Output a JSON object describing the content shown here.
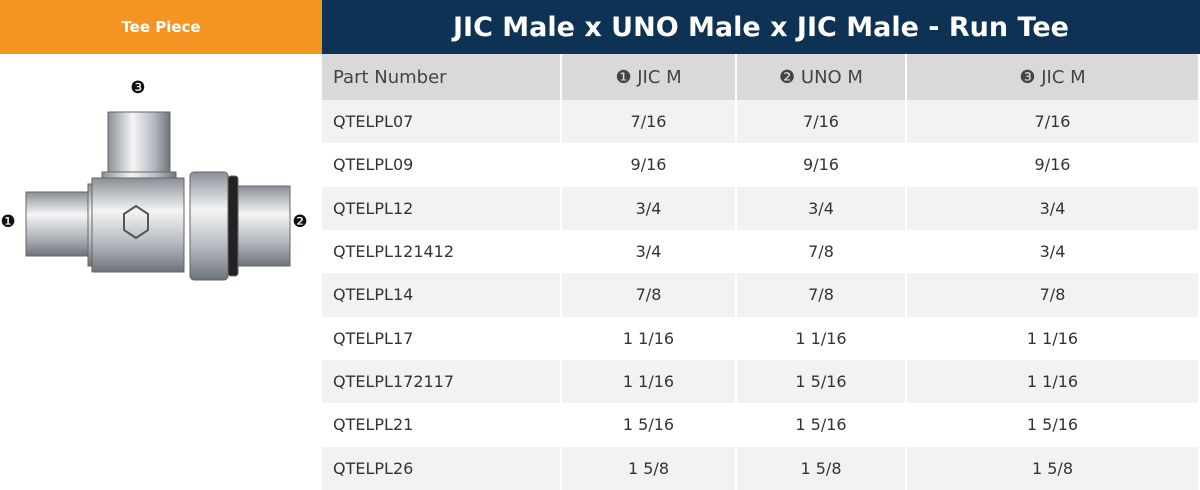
{
  "header": {
    "tab": "Tee Piece",
    "title": "JIC Male x UNO Male x JIC Male - Run Tee"
  },
  "figure": {
    "labels": [
      "❶",
      "❷",
      "❸"
    ]
  },
  "table": {
    "columns": [
      "Part Number",
      "❶ JIC M",
      "❷ UNO M",
      "❸ JIC M"
    ],
    "rows": [
      [
        "QTELPL07",
        "7/16",
        "7/16",
        "7/16"
      ],
      [
        "QTELPL09",
        "9/16",
        "9/16",
        "9/16"
      ],
      [
        "QTELPL12",
        "3/4",
        "3/4",
        "3/4"
      ],
      [
        "QTELPL121412",
        "3/4",
        "7/8",
        "3/4"
      ],
      [
        "QTELPL14",
        "7/8",
        "7/8",
        "7/8"
      ],
      [
        "QTELPL17",
        "1 1/16",
        "1 1/16",
        "1 1/16"
      ],
      [
        "QTELPL172117",
        "1 1/16",
        "1 5/16",
        "1 1/16"
      ],
      [
        "QTELPL21",
        "1 5/16",
        "1 5/16",
        "1 5/16"
      ],
      [
        "QTELPL26",
        "1 5/8",
        "1 5/8",
        "1 5/8"
      ]
    ]
  }
}
